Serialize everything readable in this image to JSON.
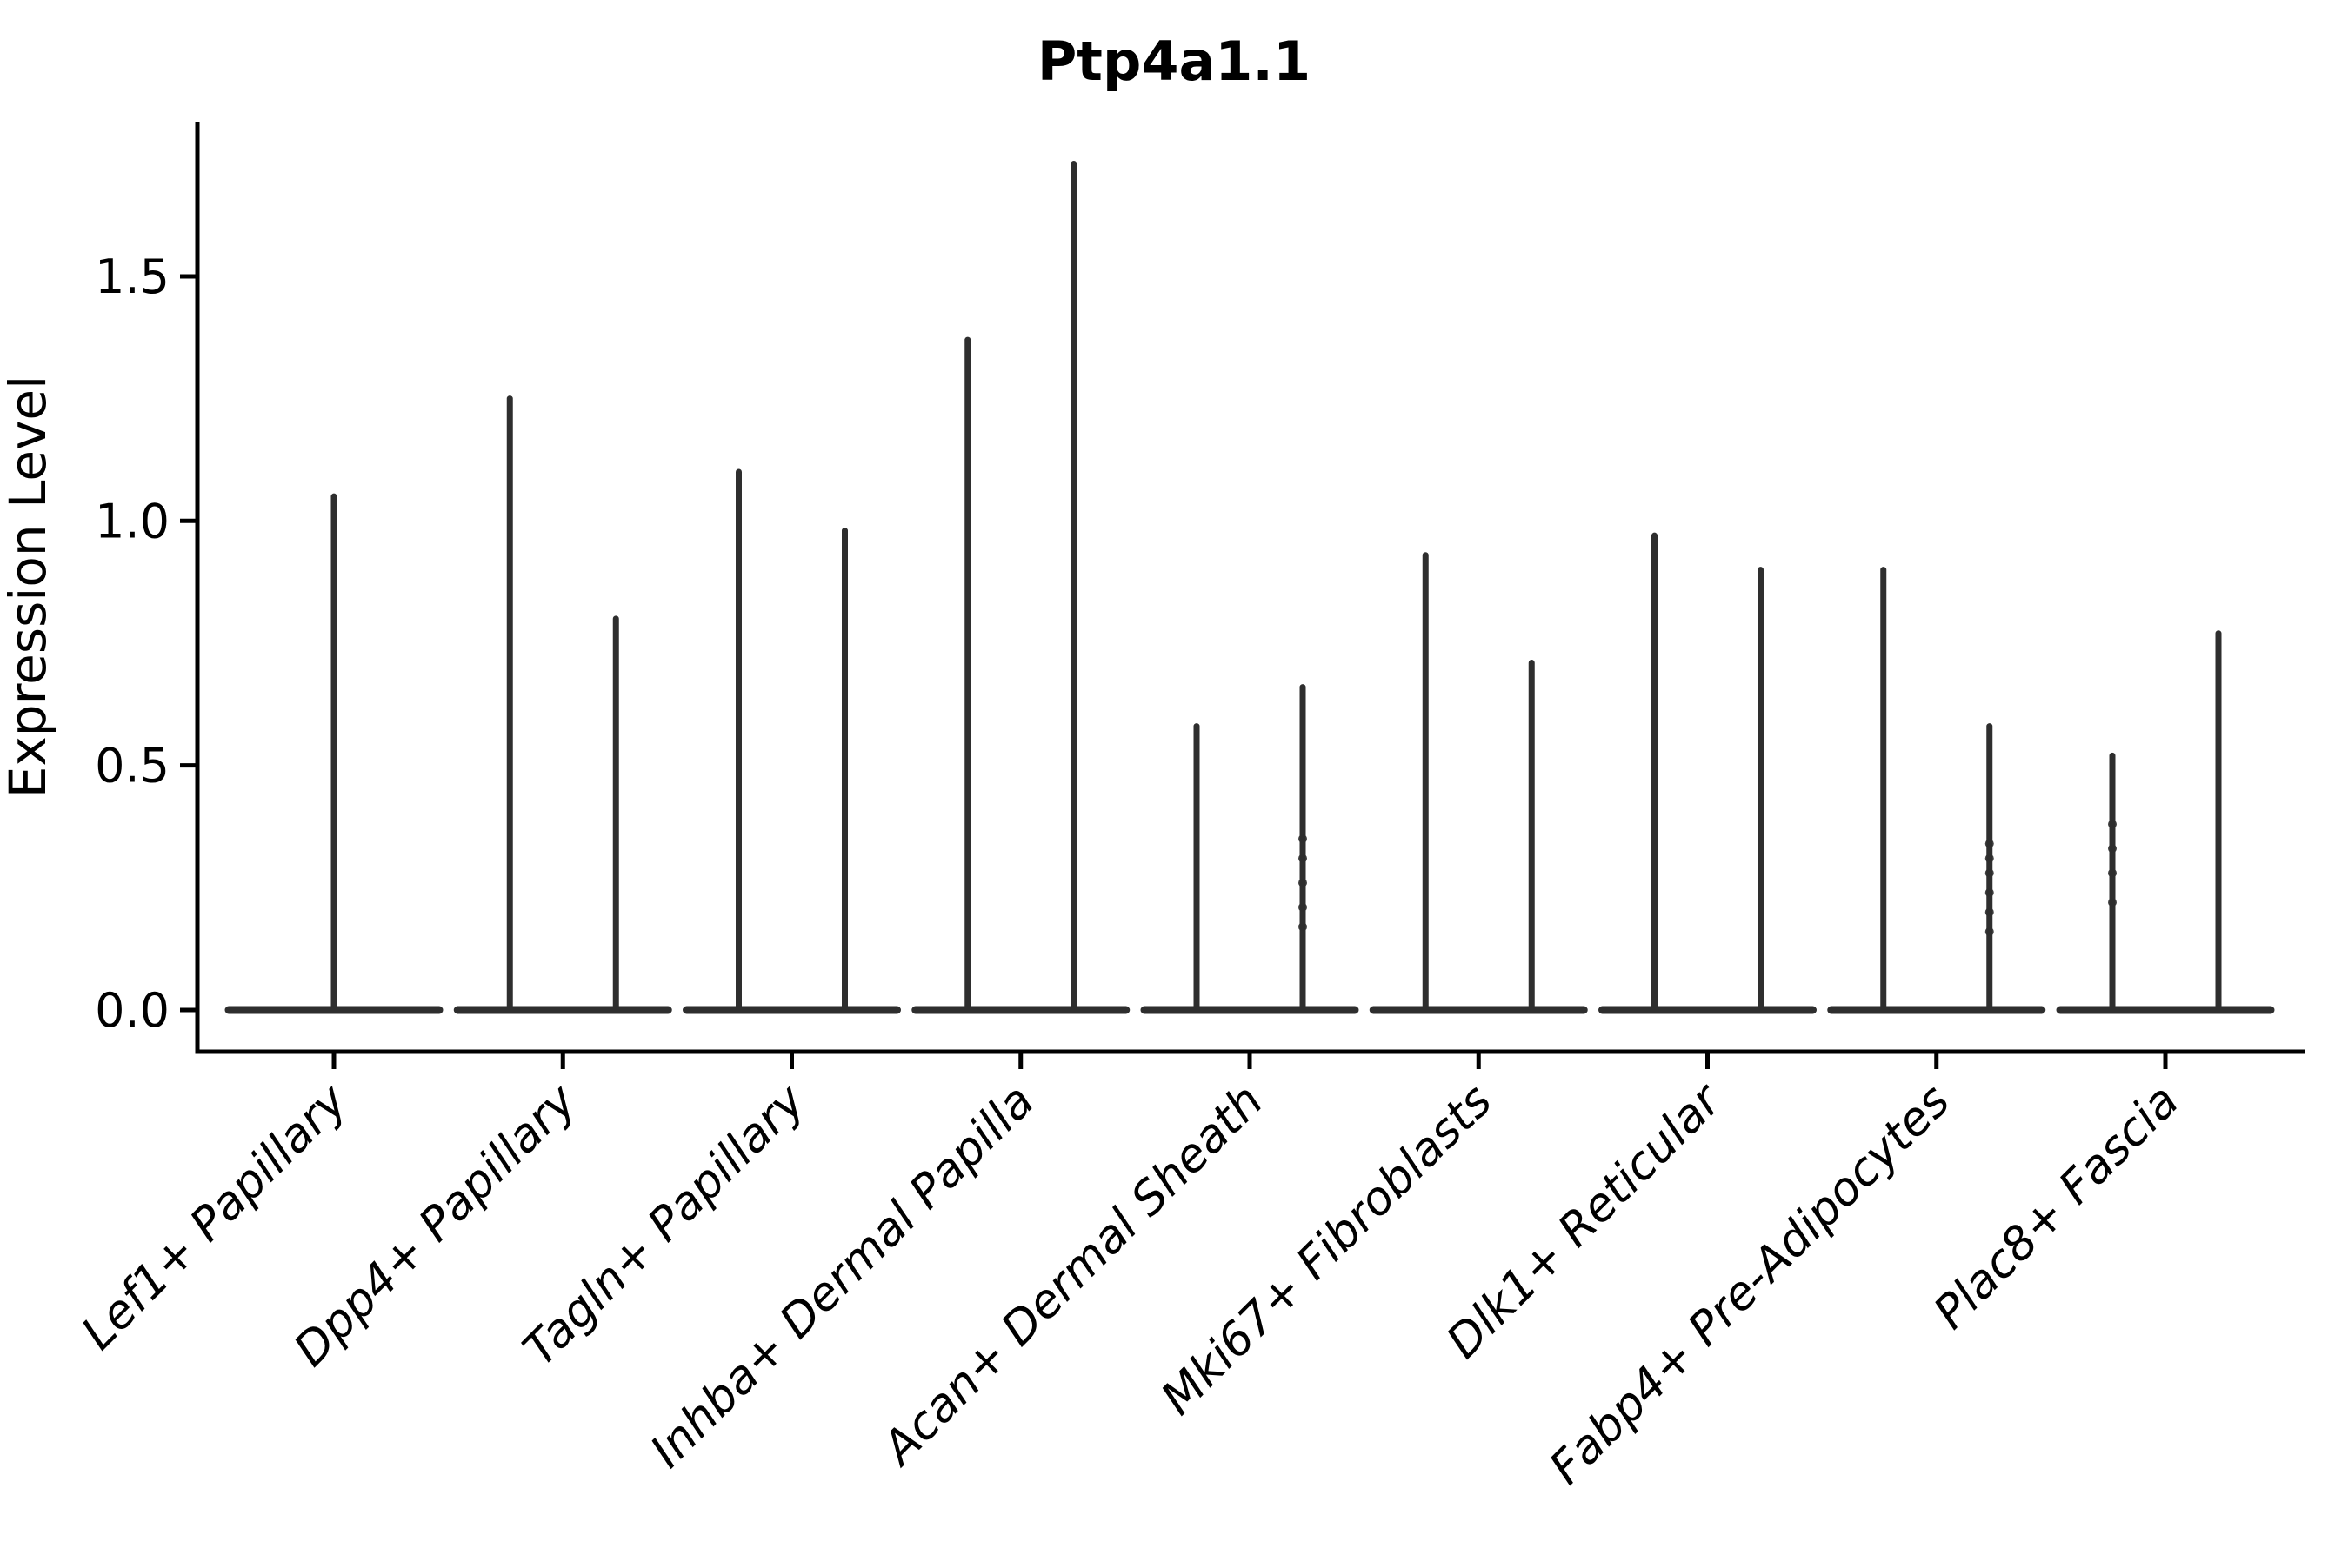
{
  "figure": {
    "title": "Ptp4a1.1",
    "ylabel": "Expression Level"
  },
  "chart_data": {
    "type": "violin",
    "title": "Ptp4a1.1",
    "xlabel": "",
    "ylabel": "Expression Level",
    "ylim": [
      0,
      1.82
    ],
    "yticks": [
      0.0,
      0.5,
      1.0,
      1.5
    ],
    "ytick_labels": [
      "0.0",
      "0.5",
      "1.0",
      "1.5"
    ],
    "grid": false,
    "legend": "none",
    "violin_color": "#2e2e2e",
    "axis_color": "#000000",
    "categories": [
      "Lef1+ Papillary",
      "Dpp4+ Papillary",
      "Tagln+ Papillary",
      "Inhba+ Dermal Papilla",
      "Acan+ Dermal Sheath",
      "Mki67+ Fibroblasts",
      "Dlk1+ Reticular",
      "Fabp4+ Pre-Adipocytes",
      "Plac8+ Fascia"
    ],
    "violins": [
      {
        "category": "Lef1+ Papillary",
        "spike_max": [
          1.05
        ],
        "jitter_points": [
          []
        ]
      },
      {
        "category": "Dpp4+ Papillary",
        "spike_max": [
          1.25,
          0.8
        ],
        "jitter_points": [
          [],
          []
        ]
      },
      {
        "category": "Tagln+ Papillary",
        "spike_max": [
          1.1,
          0.98
        ],
        "jitter_points": [
          [],
          []
        ]
      },
      {
        "category": "Inhba+ Dermal Papilla",
        "spike_max": [
          1.37,
          1.73
        ],
        "jitter_points": [
          [],
          []
        ]
      },
      {
        "category": "Acan+ Dermal Sheath",
        "spike_max": [
          0.58,
          0.66
        ],
        "jitter_points": [
          [],
          [
            0.17,
            0.21,
            0.26,
            0.31,
            0.35
          ]
        ]
      },
      {
        "category": "Mki67+ Fibroblasts",
        "spike_max": [
          0.93,
          0.71
        ],
        "jitter_points": [
          [],
          []
        ]
      },
      {
        "category": "Dlk1+ Reticular",
        "spike_max": [
          0.97,
          0.9
        ],
        "jitter_points": [
          [],
          []
        ]
      },
      {
        "category": "Fabp4+ Pre-Adipocytes",
        "spike_max": [
          0.9,
          0.58
        ],
        "jitter_points": [
          [],
          [
            0.16,
            0.2,
            0.24,
            0.28,
            0.31,
            0.34
          ]
        ]
      },
      {
        "category": "Plac8+ Fascia",
        "spike_max": [
          0.52,
          0.77
        ],
        "jitter_points": [
          [
            0.22,
            0.28,
            0.33,
            0.38
          ],
          []
        ]
      }
    ],
    "description": "Violin plot of expression level per fibroblast cluster; most mass at 0 (wide flat bases) with thin spikes to the maximum expression; categories with two groups show two half-width violins."
  }
}
